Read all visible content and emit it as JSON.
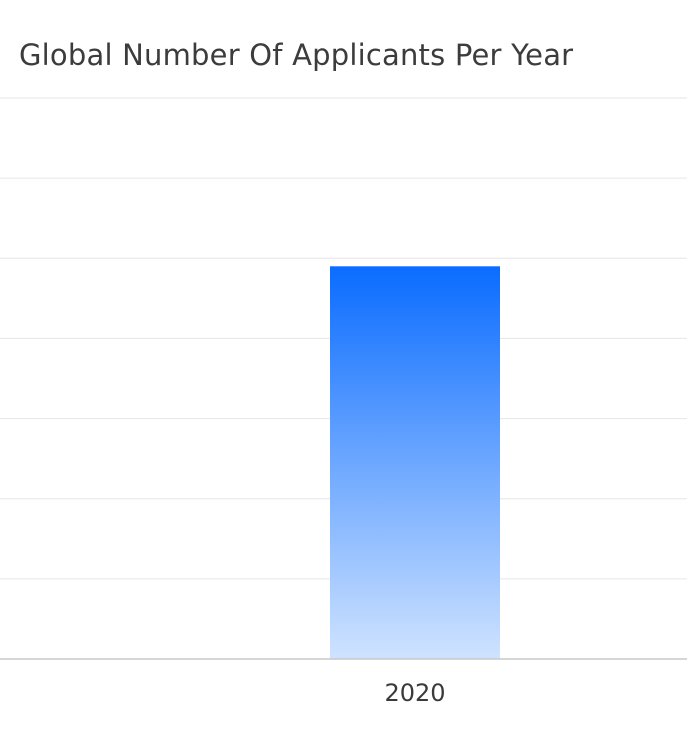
{
  "chart_data": {
    "type": "bar",
    "title": "Global Number Of Applicants Per Year",
    "categories": [
      "2020"
    ],
    "values": [
      0.7
    ],
    "ylim": [
      0,
      1
    ],
    "grid": true,
    "colors": {
      "bar_top": "#0a6cff",
      "bar_bottom": "#cfe3ff",
      "grid": "#e6e6e6",
      "axis": "#c8c8c8",
      "text": "#3c3c3c"
    }
  }
}
